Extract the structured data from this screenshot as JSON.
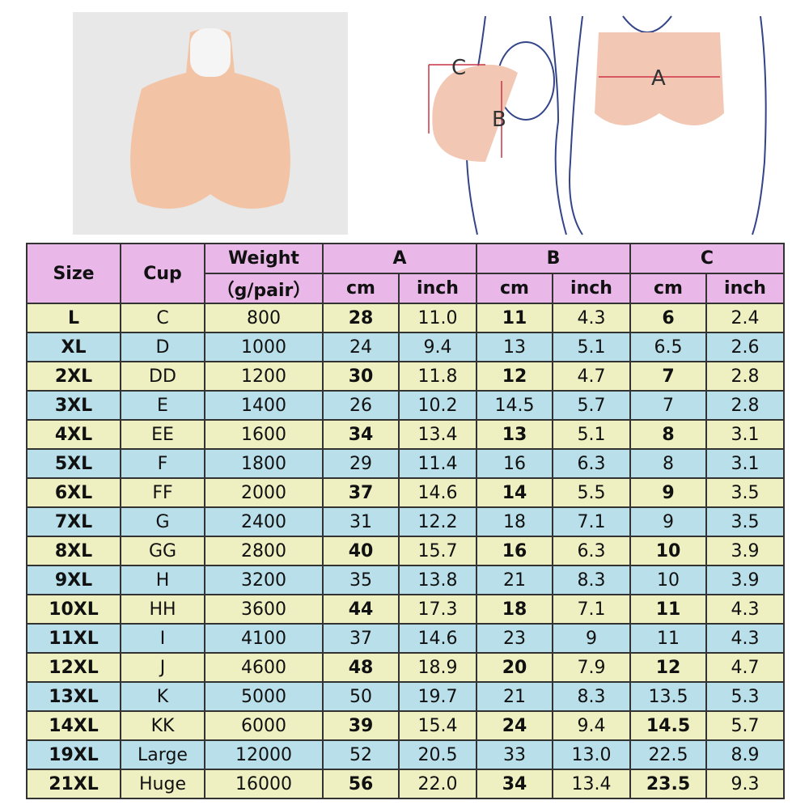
{
  "diagram": {
    "label_a": "A",
    "label_b": "B",
    "label_c": "C"
  },
  "table": {
    "headers": {
      "size": "Size",
      "cup": "Cup",
      "weight": "Weight",
      "weight_unit": "（g/pair）",
      "a": "A",
      "b": "B",
      "c": "C",
      "cm": "cm",
      "inch": "inch"
    },
    "rows": [
      [
        "L",
        "C",
        "800",
        "28",
        "11.0",
        "11",
        "4.3",
        "6",
        "2.4"
      ],
      [
        "XL",
        "D",
        "1000",
        "24",
        "9.4",
        "13",
        "5.1",
        "6.5",
        "2.6"
      ],
      [
        "2XL",
        "DD",
        "1200",
        "30",
        "11.8",
        "12",
        "4.7",
        "7",
        "2.8"
      ],
      [
        "3XL",
        "E",
        "1400",
        "26",
        "10.2",
        "14.5",
        "5.7",
        "7",
        "2.8"
      ],
      [
        "4XL",
        "EE",
        "1600",
        "34",
        "13.4",
        "13",
        "5.1",
        "8",
        "3.1"
      ],
      [
        "5XL",
        "F",
        "1800",
        "29",
        "11.4",
        "16",
        "6.3",
        "8",
        "3.1"
      ],
      [
        "6XL",
        "FF",
        "2000",
        "37",
        "14.6",
        "14",
        "5.5",
        "9",
        "3.5"
      ],
      [
        "7XL",
        "G",
        "2400",
        "31",
        "12.2",
        "18",
        "7.1",
        "9",
        "3.5"
      ],
      [
        "8XL",
        "GG",
        "2800",
        "40",
        "15.7",
        "16",
        "6.3",
        "10",
        "3.9"
      ],
      [
        "9XL",
        "H",
        "3200",
        "35",
        "13.8",
        "21",
        "8.3",
        "10",
        "3.9"
      ],
      [
        "10XL",
        "HH",
        "3600",
        "44",
        "17.3",
        "18",
        "7.1",
        "11",
        "4.3"
      ],
      [
        "11XL",
        "I",
        "4100",
        "37",
        "14.6",
        "23",
        "9",
        "11",
        "4.3"
      ],
      [
        "12XL",
        "J",
        "4600",
        "48",
        "18.9",
        "20",
        "7.9",
        "12",
        "4.7"
      ],
      [
        "13XL",
        "K",
        "5000",
        "50",
        "19.7",
        "21",
        "8.3",
        "13.5",
        "5.3"
      ],
      [
        "14XL",
        "KK",
        "6000",
        "39",
        "15.4",
        "24",
        "9.4",
        "14.5",
        "5.7"
      ],
      [
        "19XL",
        "Large",
        "12000",
        "52",
        "20.5",
        "33",
        "13.0",
        "22.5",
        "8.9"
      ],
      [
        "21XL",
        "Huge",
        "16000",
        "56",
        "22.0",
        "34",
        "13.4",
        "23.5",
        "9.3"
      ]
    ]
  }
}
